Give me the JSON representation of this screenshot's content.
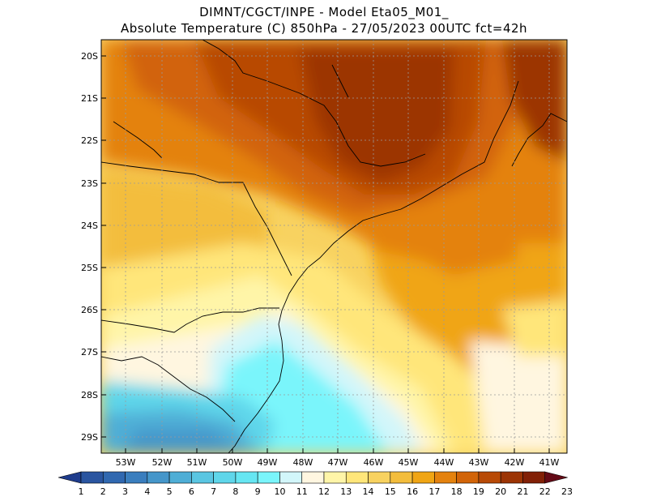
{
  "title_line1": "DIMNT/CGCT/INPE -  Model Eta05_M01_",
  "title_line2": "Absolute Temperature (C) 850hPa -  27/05/2023 00UTC fct=42h",
  "lat_labels": [
    "20S",
    "21S",
    "22S",
    "23S",
    "24S",
    "25S",
    "26S",
    "27S",
    "28S",
    "29S"
  ],
  "lon_labels": [
    "53W",
    "52W",
    "51W",
    "50W",
    "49W",
    "48W",
    "47W",
    "46W",
    "45W",
    "44W",
    "43W",
    "42W",
    "41W"
  ],
  "colorbar": {
    "labels": [
      "1",
      "2",
      "3",
      "4",
      "5",
      "6",
      "7",
      "8",
      "9",
      "10",
      "11",
      "12",
      "13",
      "14",
      "15",
      "16",
      "17",
      "18",
      "19",
      "20",
      "21",
      "22",
      "23"
    ],
    "colors": [
      "#1e3c8c",
      "#2a55a0",
      "#3068b0",
      "#3a7ebe",
      "#4596ca",
      "#4faed6",
      "#5ac6e2",
      "#5fd6ea",
      "#66e6f2",
      "#7af5fb",
      "#d2f6fa",
      "#fff6e0",
      "#fff5a8",
      "#ffe67a",
      "#f8d260",
      "#f3bd3c",
      "#f0a514",
      "#e4820e",
      "#d26408",
      "#b84a06",
      "#9c3404",
      "#822006",
      "#640a16"
    ]
  },
  "map": {
    "lat_range": [
      -29.5,
      -19.5
    ],
    "lon_range": [
      -53.8,
      -40.6
    ],
    "grid": "dotted"
  }
}
